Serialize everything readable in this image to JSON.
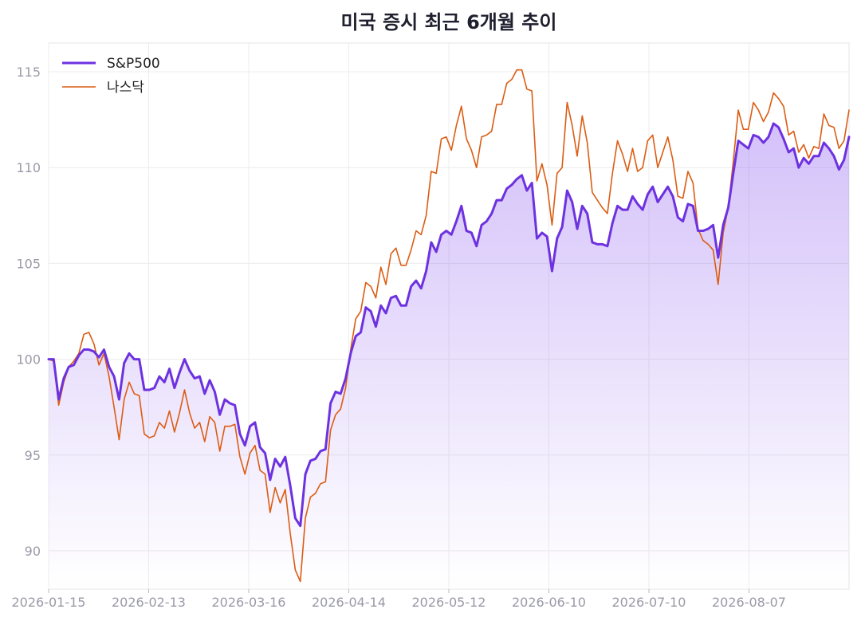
{
  "chart_data": {
    "type": "line",
    "title": "미국 증시 최근 6개월 추이",
    "xlabel": "",
    "ylabel": "",
    "ylim": [
      88,
      116.5
    ],
    "yticks": [
      90,
      95,
      100,
      105,
      110,
      115
    ],
    "x_ticks": [
      "2026-01-15",
      "2026-02-13",
      "2026-03-16",
      "2026-04-14",
      "2026-05-12",
      "2026-06-10",
      "2026-07-10",
      "2026-08-07"
    ],
    "grid": true,
    "legend_position": "top-left",
    "series": [
      {
        "name": "S&P500",
        "color": "#6d32e0",
        "fill": "area-gradient",
        "values": [
          100.0,
          100.0,
          97.9,
          99.0,
          99.6,
          99.7,
          100.2,
          100.5,
          100.5,
          100.4,
          100.1,
          100.5,
          99.6,
          99.1,
          97.9,
          99.8,
          100.3,
          100.0,
          100.0,
          98.4,
          98.4,
          98.5,
          99.1,
          98.8,
          99.5,
          98.5,
          99.3,
          100.0,
          99.4,
          99.0,
          99.1,
          98.2,
          98.9,
          98.3,
          97.1,
          97.9,
          97.7,
          97.6,
          96.1,
          95.5,
          96.5,
          96.7,
          95.4,
          95.1,
          93.7,
          94.8,
          94.4,
          94.9,
          93.4,
          91.7,
          91.3,
          94.0,
          94.7,
          94.8,
          95.2,
          95.3,
          97.7,
          98.3,
          98.2,
          99.0,
          100.3,
          101.2,
          101.4,
          102.7,
          102.5,
          101.7,
          102.8,
          102.4,
          103.2,
          103.3,
          102.8,
          102.8,
          103.8,
          104.1,
          103.7,
          104.6,
          106.1,
          105.6,
          106.5,
          106.7,
          106.5,
          107.2,
          108.0,
          106.7,
          106.6,
          105.9,
          107.0,
          107.2,
          107.6,
          108.3,
          108.3,
          108.9,
          109.1,
          109.4,
          109.6,
          108.8,
          109.2,
          106.3,
          106.6,
          106.4,
          104.6,
          106.3,
          106.9,
          108.8,
          108.2,
          106.8,
          108.0,
          107.6,
          106.1,
          106.0,
          106.0,
          105.9,
          107.1,
          108.0,
          107.8,
          107.8,
          108.5,
          108.1,
          107.8,
          108.6,
          109.0,
          108.2,
          108.6,
          109.0,
          108.5,
          107.4,
          107.2,
          108.1,
          108.0,
          106.7,
          106.7,
          106.8,
          107.0,
          105.3,
          107.0,
          107.9,
          109.7,
          111.4,
          111.2,
          111.0,
          111.7,
          111.6,
          111.3,
          111.6,
          112.3,
          112.1,
          111.5,
          110.8,
          111.0,
          110.0,
          110.5,
          110.2,
          110.6,
          110.6,
          111.3,
          111.0,
          110.6,
          109.9,
          110.4,
          111.6
        ]
      },
      {
        "name": "나스닥",
        "color": "#dc5c12",
        "values": [
          100.0,
          99.9,
          97.6,
          98.8,
          99.6,
          99.9,
          100.3,
          101.3,
          101.4,
          100.8,
          99.7,
          100.3,
          99.1,
          97.5,
          95.8,
          97.9,
          98.8,
          98.2,
          98.1,
          96.1,
          95.9,
          96.0,
          96.7,
          96.4,
          97.3,
          96.2,
          97.2,
          98.4,
          97.2,
          96.4,
          96.7,
          95.7,
          97.0,
          96.7,
          95.2,
          96.5,
          96.5,
          96.6,
          94.9,
          94.0,
          95.1,
          95.5,
          94.2,
          94.0,
          92.0,
          93.3,
          92.5,
          93.2,
          90.9,
          89.0,
          88.4,
          91.7,
          92.8,
          93.0,
          93.5,
          93.6,
          96.3,
          97.1,
          97.4,
          98.5,
          100.5,
          102.1,
          102.5,
          104.0,
          103.8,
          103.2,
          104.8,
          103.9,
          105.5,
          105.8,
          104.9,
          104.9,
          105.7,
          106.7,
          106.5,
          107.5,
          109.8,
          109.7,
          111.5,
          111.6,
          110.9,
          112.2,
          113.2,
          111.5,
          110.9,
          110.0,
          111.6,
          111.7,
          111.9,
          113.3,
          113.3,
          114.4,
          114.6,
          115.1,
          115.1,
          114.1,
          114.0,
          109.3,
          110.2,
          109.1,
          107.0,
          109.7,
          110.0,
          113.4,
          112.2,
          110.6,
          112.7,
          111.3,
          108.7,
          108.3,
          107.9,
          107.6,
          109.7,
          111.4,
          110.7,
          109.8,
          111.0,
          109.8,
          110.0,
          111.4,
          111.7,
          110.0,
          110.8,
          111.6,
          110.4,
          108.5,
          108.4,
          109.8,
          109.2,
          106.8,
          106.2,
          106.0,
          105.7,
          103.9,
          106.6,
          107.9,
          110.3,
          113.0,
          112.0,
          112.0,
          113.4,
          113.0,
          112.4,
          112.9,
          113.9,
          113.6,
          113.2,
          111.7,
          111.9,
          110.8,
          111.2,
          110.5,
          111.1,
          111.0,
          112.8,
          112.2,
          112.1,
          111.0,
          111.4,
          113.0
        ]
      }
    ]
  }
}
